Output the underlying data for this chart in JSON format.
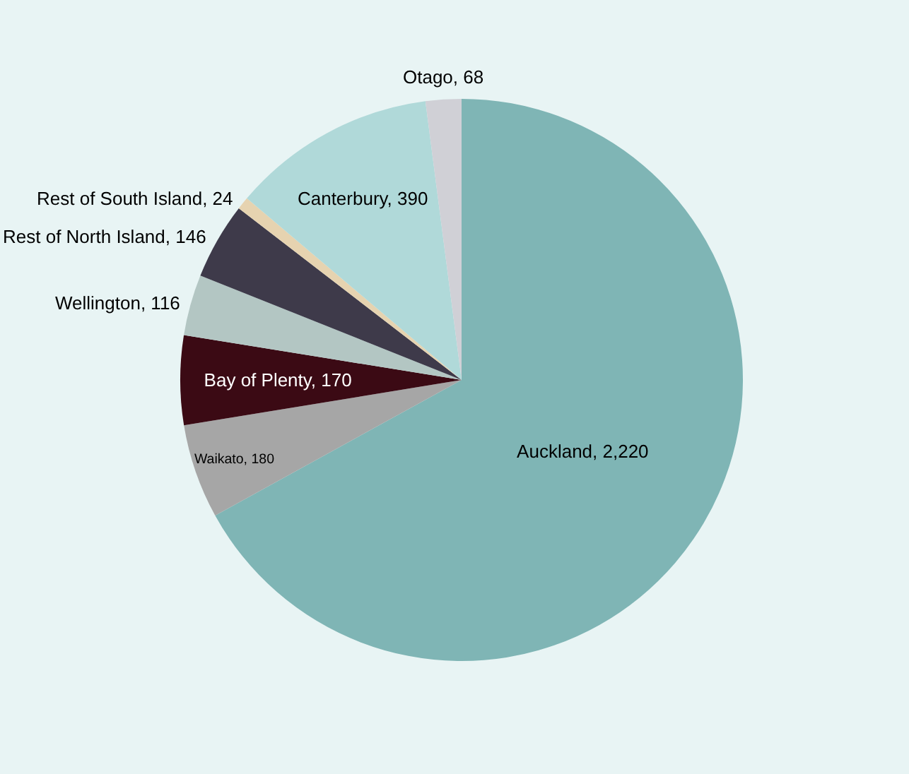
{
  "chart_data": {
    "type": "pie",
    "categories": [
      "Auckland",
      "Waikato",
      "Bay of Plenty",
      "Wellington",
      "Rest of North Island",
      "Rest of South Island",
      "Canterbury",
      "Otago"
    ],
    "values": [
      2220,
      180,
      170,
      116,
      146,
      24,
      390,
      68
    ],
    "value_labels": [
      "2,220",
      "180",
      "170",
      "116",
      "146",
      "24",
      "390",
      "68"
    ],
    "colors": [
      "#7fb5b5",
      "#a6a6a6",
      "#3b0a14",
      "#b3c6c3",
      "#3e3a4a",
      "#e6d3b0",
      "#b0d9d9",
      "#d0d0d6"
    ],
    "legend": false
  }
}
